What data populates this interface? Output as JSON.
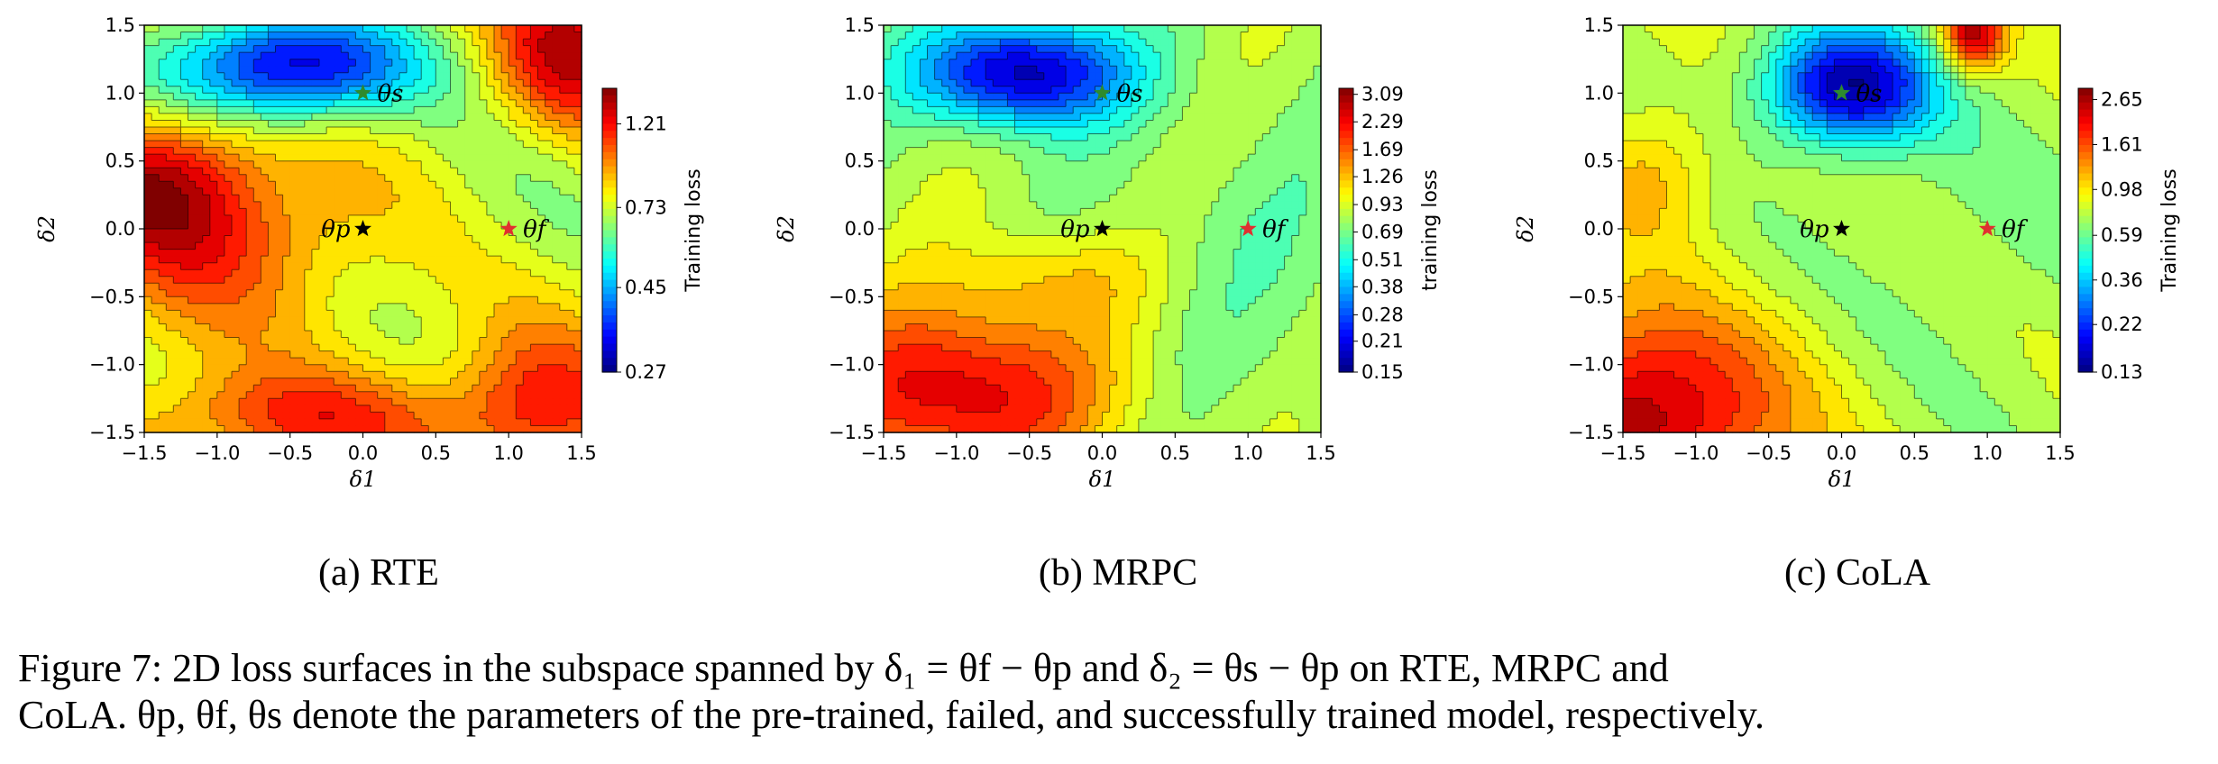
{
  "figure": {
    "subcaptions": [
      "(a) RTE",
      "(b) MRPC",
      "(c) CoLA"
    ],
    "caption_line1": "Figure 7: 2D loss surfaces in the subspace spanned by δ₁ = θf − θp and δ₂ = θs − θp on RTE, MRPC and",
    "caption_line2": "CoLA. θp, θf, θs denote the parameters of the pre-trained, failed, and successfully trained model, respectively."
  },
  "chart_data": [
    {
      "type": "heatmap",
      "xlabel": "δ1",
      "ylabel": "δ2",
      "xlim": [
        -1.5,
        1.5
      ],
      "ylim": [
        -1.5,
        1.5
      ],
      "x_ticks": [
        "−1.5",
        "−1.0",
        "−0.5",
        "0.0",
        "0.5",
        "1.0",
        "1.5"
      ],
      "y_ticks": [
        "−1.5",
        "−1.0",
        "−0.5",
        "0.0",
        "0.5",
        "1.0",
        "1.5"
      ],
      "colorbar_label": "Training loss",
      "colorbar_ticks": [
        "0.27",
        "0.45",
        "0.73",
        "1.21"
      ],
      "colorbar_range": [
        0.27,
        1.5
      ],
      "colormap": "jet",
      "contour_lines": true,
      "points": [
        {
          "name": "θs",
          "x": 0.0,
          "y": 1.0,
          "color": "#2e8b2e"
        },
        {
          "name": "θp",
          "x": 0.0,
          "y": 0.0,
          "color": "#000000"
        },
        {
          "name": "θf",
          "x": 1.0,
          "y": 0.0,
          "color": "#e03030"
        }
      ]
    },
    {
      "type": "heatmap",
      "xlabel": "δ1",
      "ylabel": "δ2",
      "xlim": [
        -1.5,
        1.5
      ],
      "ylim": [
        -1.5,
        1.5
      ],
      "x_ticks": [
        "−1.5",
        "−1.0",
        "−0.5",
        "0.0",
        "0.5",
        "1.0",
        "1.5"
      ],
      "y_ticks": [
        "−1.5",
        "−1.0",
        "−0.5",
        "0.0",
        "0.5",
        "1.0",
        "1.5"
      ],
      "colorbar_label": "training loss",
      "colorbar_ticks": [
        "0.15",
        "0.21",
        "0.28",
        "0.38",
        "0.51",
        "0.69",
        "0.93",
        "1.26",
        "1.69",
        "2.29",
        "3.09"
      ],
      "colorbar_range": [
        0.15,
        3.3
      ],
      "colormap": "jet",
      "contour_lines": true,
      "points": [
        {
          "name": "θs",
          "x": 0.0,
          "y": 1.0,
          "color": "#2e8b2e"
        },
        {
          "name": "θp",
          "x": 0.0,
          "y": 0.0,
          "color": "#000000"
        },
        {
          "name": "θf",
          "x": 1.0,
          "y": 0.0,
          "color": "#e03030"
        }
      ]
    },
    {
      "type": "heatmap",
      "xlabel": "δ1",
      "ylabel": "δ2",
      "xlim": [
        -1.5,
        1.5
      ],
      "ylim": [
        -1.5,
        1.5
      ],
      "x_ticks": [
        "−1.5",
        "−1.0",
        "−0.5",
        "0.0",
        "0.5",
        "1.0",
        "1.5"
      ],
      "y_ticks": [
        "−1.5",
        "−1.0",
        "−0.5",
        "0.0",
        "0.5",
        "1.0",
        "1.5"
      ],
      "colorbar_label": "Training loss",
      "colorbar_ticks": [
        "0.13",
        "0.22",
        "0.36",
        "0.59",
        "0.98",
        "1.61",
        "2.65"
      ],
      "colorbar_range": [
        0.13,
        3.0
      ],
      "colormap": "jet",
      "contour_lines": true,
      "points": [
        {
          "name": "θs",
          "x": 0.0,
          "y": 1.0,
          "color": "#2e8b2e"
        },
        {
          "name": "θp",
          "x": 0.0,
          "y": 0.0,
          "color": "#000000"
        },
        {
          "name": "θf",
          "x": 1.0,
          "y": 0.0,
          "color": "#e03030"
        }
      ]
    }
  ]
}
